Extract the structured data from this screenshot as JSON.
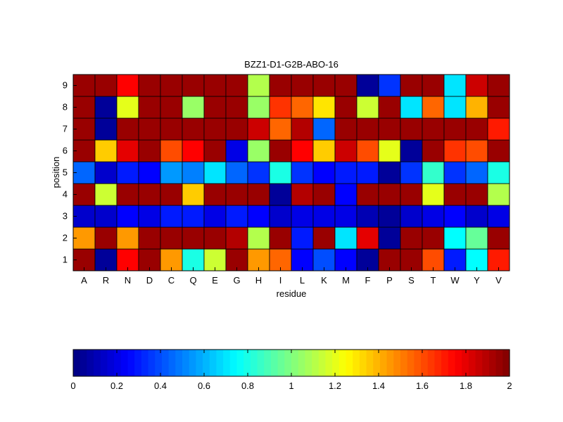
{
  "chart_data": {
    "type": "heatmap",
    "title": "BZZ1-D1-G2B-ABO-16",
    "xlabel": "residue",
    "ylabel": "position",
    "x_categories": [
      "A",
      "R",
      "N",
      "D",
      "C",
      "Q",
      "E",
      "G",
      "H",
      "I",
      "L",
      "K",
      "M",
      "F",
      "P",
      "S",
      "T",
      "W",
      "Y",
      "V"
    ],
    "y_categories": [
      "1",
      "2",
      "3",
      "4",
      "5",
      "6",
      "7",
      "8",
      "9"
    ],
    "colormap": "jet",
    "color_range": [
      0,
      2
    ],
    "colorbar_ticks": [
      "0",
      "0.2",
      "0.4",
      "0.6",
      "0.8",
      "1",
      "1.2",
      "1.4",
      "1.6",
      "1.8",
      "2"
    ],
    "values": [
      [
        1.95,
        0.05,
        1.75,
        1.95,
        1.45,
        0.8,
        1.15,
        1.95,
        1.45,
        1.55,
        0.25,
        0.4,
        0.25,
        0.05,
        1.95,
        1.95,
        1.6,
        0.3,
        0.75,
        1.7
      ],
      [
        1.45,
        1.95,
        1.45,
        1.95,
        1.95,
        1.95,
        1.95,
        1.9,
        1.1,
        1.95,
        0.3,
        1.95,
        0.7,
        1.8,
        0.05,
        1.95,
        1.95,
        0.75,
        0.95,
        1.95
      ],
      [
        0.15,
        0.15,
        0.25,
        0.2,
        0.3,
        0.3,
        0.2,
        0.3,
        0.25,
        0.15,
        0.2,
        0.2,
        0.2,
        0.1,
        0.05,
        0.15,
        0.2,
        0.25,
        0.15,
        0.2
      ],
      [
        1.95,
        1.15,
        1.95,
        1.95,
        1.95,
        1.35,
        1.95,
        1.95,
        1.95,
        0.05,
        1.9,
        1.95,
        0.25,
        1.95,
        1.95,
        1.95,
        1.2,
        1.95,
        1.95,
        1.1
      ],
      [
        0.45,
        0.15,
        0.3,
        0.25,
        0.55,
        0.5,
        0.7,
        0.45,
        0.35,
        0.8,
        0.35,
        0.25,
        0.3,
        0.3,
        0.05,
        0.35,
        0.85,
        0.35,
        0.45,
        0.8
      ],
      [
        1.95,
        1.35,
        1.8,
        1.95,
        1.6,
        1.75,
        1.95,
        0.2,
        1.05,
        1.95,
        1.75,
        1.35,
        1.85,
        1.6,
        1.2,
        0.05,
        1.95,
        1.65,
        1.6,
        1.95
      ],
      [
        1.95,
        0.05,
        1.95,
        1.95,
        1.95,
        1.95,
        1.95,
        1.95,
        1.85,
        1.55,
        1.9,
        0.45,
        1.95,
        1.95,
        1.95,
        1.95,
        1.95,
        1.95,
        1.95,
        1.7
      ],
      [
        1.95,
        0.05,
        1.2,
        1.95,
        1.95,
        1.05,
        1.95,
        1.95,
        1.05,
        1.65,
        1.55,
        1.3,
        1.95,
        1.15,
        1.95,
        0.7,
        1.55,
        0.7,
        1.4,
        1.95
      ],
      [
        1.95,
        1.95,
        1.75,
        1.95,
        1.95,
        1.95,
        1.95,
        1.95,
        1.1,
        1.95,
        1.95,
        1.95,
        1.95,
        0.05,
        0.35,
        1.95,
        1.95,
        0.7,
        1.85,
        1.95
      ]
    ]
  }
}
